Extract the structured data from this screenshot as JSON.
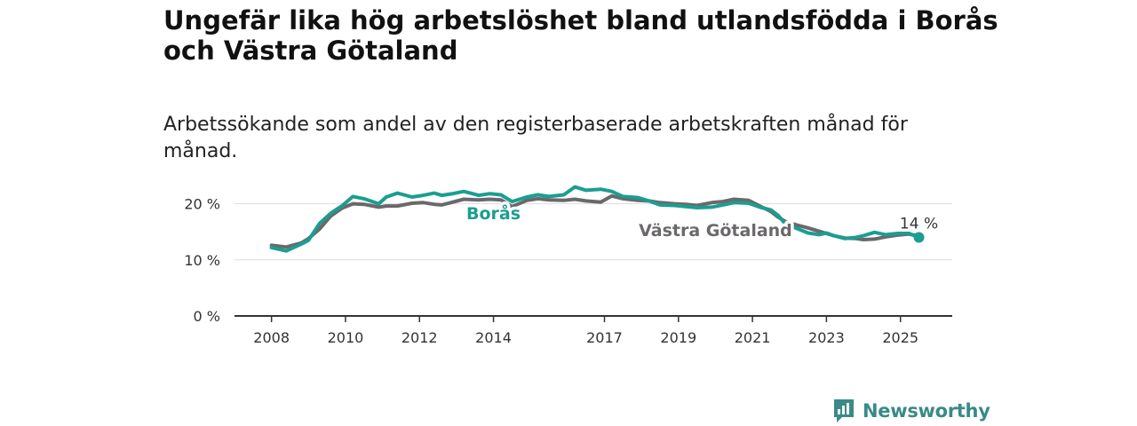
{
  "header": {
    "title": "Ungefär lika hög arbetslöshet bland utlandsfödda i Borås och Västra Götaland",
    "subtitle": "Arbetssökande som andel av den registerbaserade arbetskraften månad för månad."
  },
  "brand": {
    "name": "Newsworthy",
    "icon": "newsworthy-logo-icon",
    "color": "#3a8a87"
  },
  "colors": {
    "boras": "#1a9e91",
    "vastra_gotaland": "#6b686b",
    "grid": "#dddddd",
    "axis": "#333333"
  },
  "chart_data": {
    "type": "line",
    "title": "Ungefär lika hög arbetslöshet bland utlandsfödda i Borås och Västra Götaland",
    "subtitle": "Arbetssökande som andel av den registerbaserade arbetskraften månad för månad.",
    "xlabel": "",
    "ylabel": "",
    "y_unit": "%",
    "ylim": [
      0,
      25
    ],
    "yticks": [
      0,
      10,
      20
    ],
    "ytick_labels": [
      "0 %",
      "10 %",
      "20 %"
    ],
    "xlim": [
      2007.0,
      2026.4
    ],
    "xticks": [
      2008,
      2010,
      2012,
      2014,
      2017,
      2019,
      2021,
      2023,
      2025
    ],
    "xtick_labels": [
      "2008",
      "2010",
      "2012",
      "2014",
      "2017",
      "2019",
      "2021",
      "2023",
      "2025"
    ],
    "grid": true,
    "end_label": "14 %",
    "series": [
      {
        "name": "Borås",
        "color": "#1a9e91",
        "points": [
          [
            2008.0,
            12.2
          ],
          [
            2008.4,
            11.6
          ],
          [
            2008.8,
            12.8
          ],
          [
            2009.0,
            13.5
          ],
          [
            2009.3,
            16.5
          ],
          [
            2009.6,
            18.3
          ],
          [
            2009.9,
            19.6
          ],
          [
            2010.2,
            21.3
          ],
          [
            2010.5,
            20.9
          ],
          [
            2010.9,
            20.0
          ],
          [
            2011.1,
            21.2
          ],
          [
            2011.4,
            21.9
          ],
          [
            2011.8,
            21.2
          ],
          [
            2012.1,
            21.5
          ],
          [
            2012.4,
            21.9
          ],
          [
            2012.6,
            21.5
          ],
          [
            2012.9,
            21.8
          ],
          [
            2013.2,
            22.2
          ],
          [
            2013.6,
            21.5
          ],
          [
            2013.9,
            21.8
          ],
          [
            2014.2,
            21.6
          ],
          [
            2014.5,
            20.4
          ],
          [
            2014.9,
            21.2
          ],
          [
            2015.2,
            21.6
          ],
          [
            2015.5,
            21.3
          ],
          [
            2015.9,
            21.6
          ],
          [
            2016.2,
            23.0
          ],
          [
            2016.5,
            22.4
          ],
          [
            2016.9,
            22.6
          ],
          [
            2017.2,
            22.2
          ],
          [
            2017.5,
            21.3
          ],
          [
            2017.9,
            21.1
          ],
          [
            2018.2,
            20.5
          ],
          [
            2018.5,
            19.8
          ],
          [
            2018.9,
            19.7
          ],
          [
            2019.2,
            19.5
          ],
          [
            2019.5,
            19.3
          ],
          [
            2019.9,
            19.4
          ],
          [
            2020.2,
            19.8
          ],
          [
            2020.5,
            20.2
          ],
          [
            2020.9,
            20.1
          ],
          [
            2021.2,
            19.4
          ],
          [
            2021.5,
            18.9
          ],
          [
            2021.7,
            17.9
          ],
          [
            2021.9,
            16.3
          ],
          [
            2022.2,
            15.6
          ],
          [
            2022.5,
            14.8
          ],
          [
            2022.8,
            14.5
          ],
          [
            2023.0,
            14.8
          ],
          [
            2023.2,
            14.3
          ],
          [
            2023.5,
            13.8
          ],
          [
            2023.8,
            14.0
          ],
          [
            2024.0,
            14.3
          ],
          [
            2024.3,
            14.9
          ],
          [
            2024.6,
            14.5
          ],
          [
            2024.9,
            14.7
          ],
          [
            2025.2,
            14.8
          ],
          [
            2025.5,
            14.0
          ]
        ]
      },
      {
        "name": "Västra Götaland",
        "color": "#6b686b",
        "points": [
          [
            2008.0,
            12.6
          ],
          [
            2008.4,
            12.3
          ],
          [
            2008.8,
            13.0
          ],
          [
            2009.0,
            13.8
          ],
          [
            2009.3,
            15.5
          ],
          [
            2009.6,
            17.8
          ],
          [
            2009.9,
            19.2
          ],
          [
            2010.2,
            20.0
          ],
          [
            2010.5,
            19.9
          ],
          [
            2010.9,
            19.4
          ],
          [
            2011.1,
            19.6
          ],
          [
            2011.4,
            19.6
          ],
          [
            2011.8,
            20.1
          ],
          [
            2012.1,
            20.2
          ],
          [
            2012.4,
            19.9
          ],
          [
            2012.6,
            19.8
          ],
          [
            2012.9,
            20.3
          ],
          [
            2013.2,
            20.8
          ],
          [
            2013.6,
            20.7
          ],
          [
            2013.9,
            20.8
          ],
          [
            2014.2,
            20.7
          ],
          [
            2014.5,
            19.5
          ],
          [
            2014.9,
            20.6
          ],
          [
            2015.2,
            20.9
          ],
          [
            2015.5,
            20.7
          ],
          [
            2015.9,
            20.6
          ],
          [
            2016.2,
            20.8
          ],
          [
            2016.5,
            20.5
          ],
          [
            2016.9,
            20.3
          ],
          [
            2017.2,
            21.4
          ],
          [
            2017.5,
            20.9
          ],
          [
            2017.9,
            20.6
          ],
          [
            2018.2,
            20.5
          ],
          [
            2018.5,
            20.2
          ],
          [
            2018.9,
            20.0
          ],
          [
            2019.2,
            19.9
          ],
          [
            2019.5,
            19.7
          ],
          [
            2019.9,
            20.2
          ],
          [
            2020.2,
            20.4
          ],
          [
            2020.5,
            20.8
          ],
          [
            2020.9,
            20.6
          ],
          [
            2021.2,
            19.6
          ],
          [
            2021.5,
            18.6
          ],
          [
            2021.7,
            17.6
          ],
          [
            2021.9,
            16.8
          ],
          [
            2022.2,
            16.2
          ],
          [
            2022.5,
            15.7
          ],
          [
            2022.8,
            15.1
          ],
          [
            2023.0,
            14.7
          ],
          [
            2023.2,
            14.3
          ],
          [
            2023.5,
            13.9
          ],
          [
            2023.8,
            13.8
          ],
          [
            2024.0,
            13.6
          ],
          [
            2024.3,
            13.7
          ],
          [
            2024.6,
            14.1
          ],
          [
            2024.9,
            14.4
          ],
          [
            2025.2,
            14.6
          ],
          [
            2025.5,
            14.3
          ]
        ]
      }
    ]
  }
}
